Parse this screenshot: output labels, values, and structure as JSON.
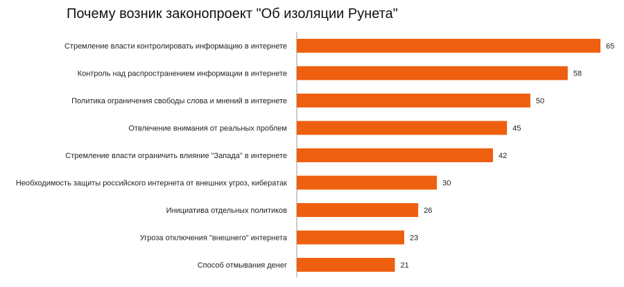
{
  "chart_data": {
    "type": "bar",
    "orientation": "horizontal",
    "title": "Почему возник законопроект \"Об изоляции Рунета\"",
    "categories": [
      "Стремление власти контролировать информацию в интернете",
      "Контроль над распространением информации в интернете",
      "Политика ограничения свободы слова и мнений в интернете",
      "Отвлечение внимания от реальных проблем",
      "Стремление власти ограничить влияние \"Запада\" в интернете",
      "Необходимость защиты российского интернета от внешних угроз, кибератак",
      "Инициатива отдельных политиков",
      "Угроза отключения \"внешнего\" интернета",
      "Способ отмывания денег"
    ],
    "values": [
      65,
      58,
      50,
      45,
      42,
      30,
      26,
      23,
      21
    ],
    "xlim": [
      0,
      65
    ],
    "grid": false,
    "legend": "none",
    "bar_color": "#ee5f0f",
    "axis_color": "#9a9a9a"
  }
}
